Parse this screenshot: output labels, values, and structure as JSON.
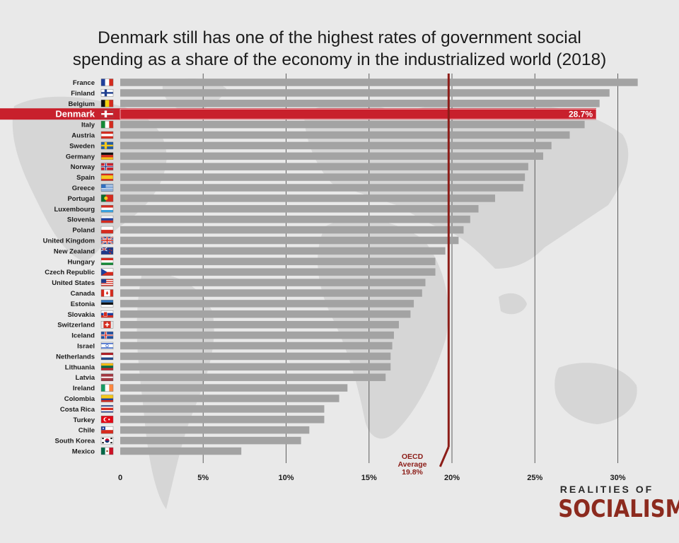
{
  "title_line1": "Denmark still has one of the highest rates of government social",
  "title_line2": "spending as a share of the economy in the industrialized world (2018)",
  "logo": {
    "line1": "REALITIES OF",
    "line2": "SOCIALISM"
  },
  "colors": {
    "bar": "#a3a3a3",
    "highlight": "#c8202c",
    "average_line": "#8c1d18",
    "axis_text": "#1b1b1b",
    "gridline": "#3c3c3c"
  },
  "chart_data": {
    "type": "bar",
    "orientation": "horizontal",
    "title": "Denmark still has one of the highest rates of government social spending as a share of the economy in the industrialized world (2018)",
    "xlabel": "",
    "ylabel": "",
    "xlim": [
      0,
      31
    ],
    "x_ticks": [
      "0",
      "5%",
      "10%",
      "15%",
      "20%",
      "25%",
      "30%"
    ],
    "x_tick_values": [
      0,
      5,
      10,
      15,
      20,
      25,
      30
    ],
    "grid": true,
    "highlight": {
      "category": "Denmark",
      "label": "28.7%"
    },
    "reference_line": {
      "value": 19.8,
      "label_lines": [
        "OECD",
        "Average",
        "19.8%"
      ]
    },
    "categories": [
      "France",
      "Finland",
      "Belgium",
      "Denmark",
      "Italy",
      "Austria",
      "Sweden",
      "Germany",
      "Norway",
      "Spain",
      "Greece",
      "Portugal",
      "Luxembourg",
      "Slovenia",
      "Poland",
      "United Kingdom",
      "New Zealand",
      "Hungary",
      "Czech Republic",
      "United States",
      "Canada",
      "Estonia",
      "Slovakia",
      "Switzerland",
      "Iceland",
      "Israel",
      "Netherlands",
      "Lithuania",
      "Latvia",
      "Ireland",
      "Colombia",
      "Costa Rica",
      "Turkey",
      "Chile",
      "South Korea",
      "Mexico"
    ],
    "values": [
      31.2,
      29.5,
      28.9,
      28.7,
      28.0,
      27.1,
      26.0,
      25.5,
      24.6,
      24.4,
      24.3,
      22.6,
      21.6,
      21.1,
      20.7,
      20.4,
      19.6,
      19.0,
      19.0,
      18.4,
      18.2,
      17.7,
      17.5,
      16.8,
      16.5,
      16.4,
      16.3,
      16.3,
      16.0,
      13.7,
      13.2,
      12.3,
      12.3,
      11.4,
      10.9,
      7.3
    ],
    "flags": [
      "france-flag-icon",
      "finland-flag-icon",
      "belgium-flag-icon",
      "denmark-flag-icon",
      "italy-flag-icon",
      "austria-flag-icon",
      "sweden-flag-icon",
      "germany-flag-icon",
      "norway-flag-icon",
      "spain-flag-icon",
      "greece-flag-icon",
      "portugal-flag-icon",
      "luxembourg-flag-icon",
      "slovenia-flag-icon",
      "poland-flag-icon",
      "united-kingdom-flag-icon",
      "new-zealand-flag-icon",
      "hungary-flag-icon",
      "czech-republic-flag-icon",
      "united-states-flag-icon",
      "canada-flag-icon",
      "estonia-flag-icon",
      "slovakia-flag-icon",
      "switzerland-flag-icon",
      "iceland-flag-icon",
      "israel-flag-icon",
      "netherlands-flag-icon",
      "lithuania-flag-icon",
      "latvia-flag-icon",
      "ireland-flag-icon",
      "colombia-flag-icon",
      "costa-rica-flag-icon",
      "turkey-flag-icon",
      "chile-flag-icon",
      "south-korea-flag-icon",
      "mexico-flag-icon"
    ]
  }
}
